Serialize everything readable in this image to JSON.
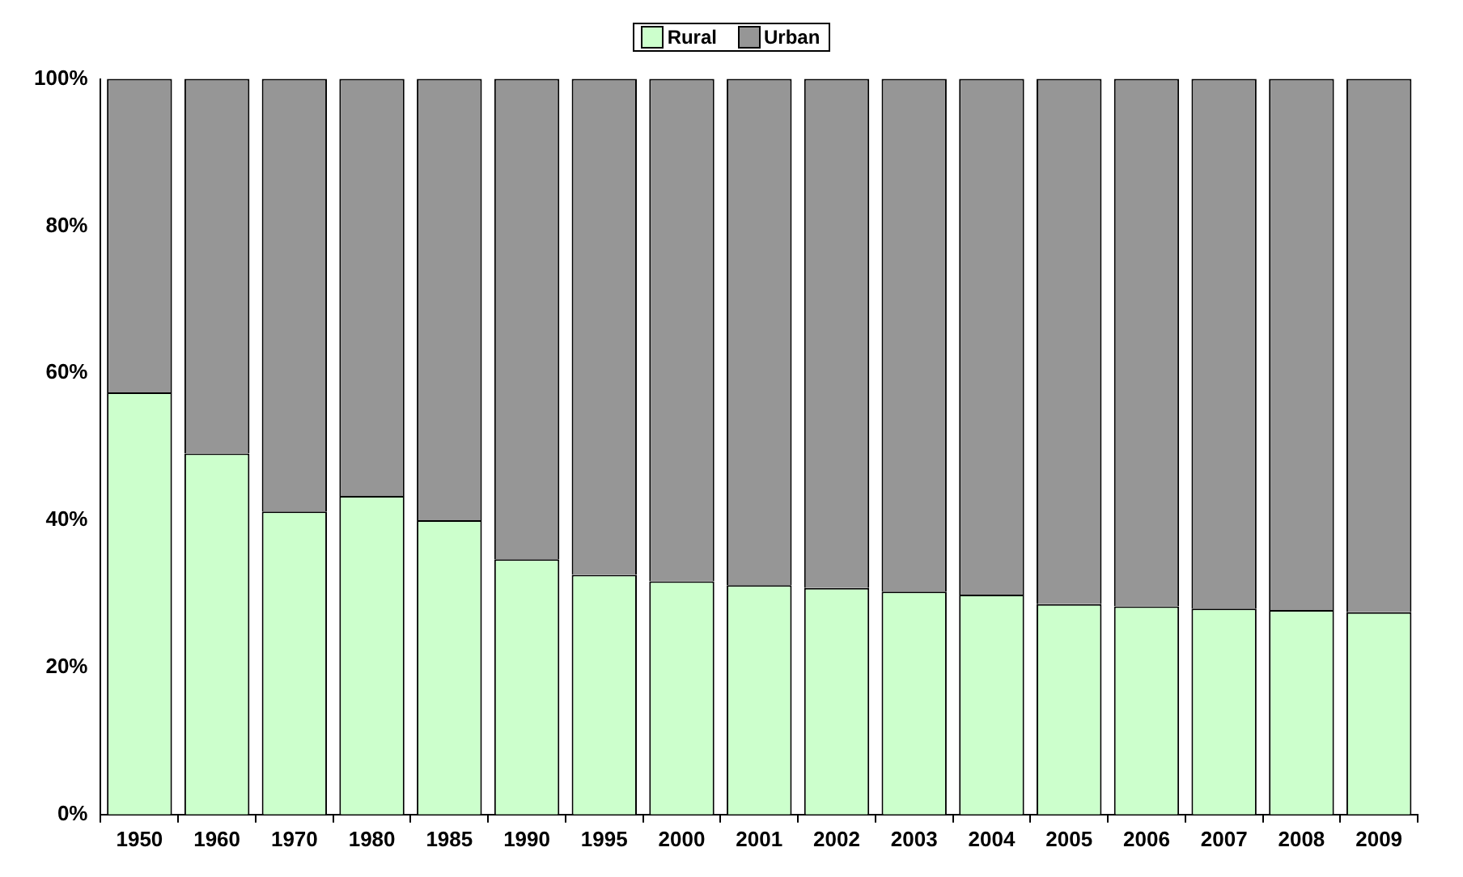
{
  "chart_data": {
    "type": "bar",
    "stacked": true,
    "legend": "top",
    "categories": [
      "1950",
      "1960",
      "1970",
      "1980",
      "1985",
      "1990",
      "1995",
      "2000",
      "2001",
      "2002",
      "2003",
      "2004",
      "2005",
      "2006",
      "2007",
      "2008",
      "2009"
    ],
    "series": [
      {
        "name": "Rural",
        "color": "#ccffcc",
        "values": [
          57.4,
          49.1,
          41.2,
          43.3,
          40.0,
          34.7,
          32.6,
          31.7,
          31.2,
          30.8,
          30.3,
          29.9,
          28.6,
          28.3,
          28.0,
          27.8,
          27.5
        ]
      },
      {
        "name": "Urban",
        "color": "#969696",
        "values": [
          42.6,
          50.9,
          58.8,
          56.7,
          60.0,
          65.3,
          67.4,
          68.3,
          68.8,
          69.2,
          69.7,
          70.1,
          71.4,
          71.7,
          72.0,
          72.2,
          72.5
        ]
      }
    ],
    "ylim": [
      0,
      100
    ],
    "yticks": [
      {
        "value": 0,
        "label": "0%"
      },
      {
        "value": 20,
        "label": "20%"
      },
      {
        "value": 40,
        "label": "40%"
      },
      {
        "value": 60,
        "label": "60%"
      },
      {
        "value": 80,
        "label": "80%"
      },
      {
        "value": 100,
        "label": "100%"
      }
    ],
    "grid": false
  }
}
